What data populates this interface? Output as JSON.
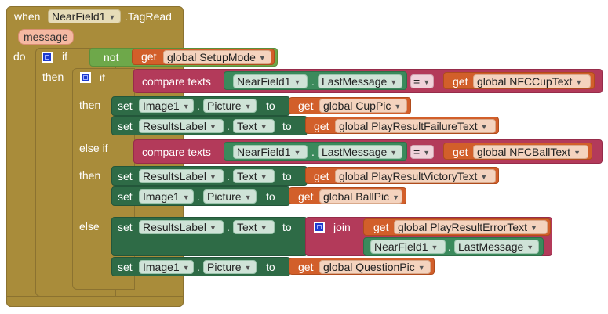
{
  "event": {
    "when": "when",
    "component": "NearField1",
    "event_name": ".TagRead",
    "param": "message",
    "do": "do"
  },
  "outer_if": {
    "if": "if",
    "not": "not",
    "get": "get",
    "var": "global SetupMode",
    "then": "then"
  },
  "inner_if": {
    "if": "if",
    "then": "then",
    "else_if": "else if",
    "else": "else",
    "compare_texts": "compare texts",
    "eq": "=",
    "dot": ".",
    "set": "set",
    "to": "to",
    "get": "get",
    "join": "join",
    "cond1": {
      "component": "NearField1",
      "prop": "LastMessage",
      "var": "global NFCCupText"
    },
    "then1": [
      {
        "component": "Image1",
        "prop": "Picture",
        "var": "global CupPic"
      },
      {
        "component": "ResultsLabel",
        "prop": "Text",
        "var": "global PlayResultFailureText"
      }
    ],
    "cond2": {
      "component": "NearField1",
      "prop": "LastMessage",
      "var": "global NFCBallText"
    },
    "then2": [
      {
        "component": "ResultsLabel",
        "prop": "Text",
        "var": "global PlayResultVictoryText"
      },
      {
        "component": "Image1",
        "prop": "Picture",
        "var": "global BallPic"
      }
    ],
    "else_set1": {
      "component": "ResultsLabel",
      "prop": "Text",
      "join_var": "global PlayResultErrorText",
      "join_component": "NearField1",
      "join_prop": "LastMessage"
    },
    "else_set2": {
      "component": "Image1",
      "prop": "Picture",
      "var": "global QuestionPic"
    }
  }
}
